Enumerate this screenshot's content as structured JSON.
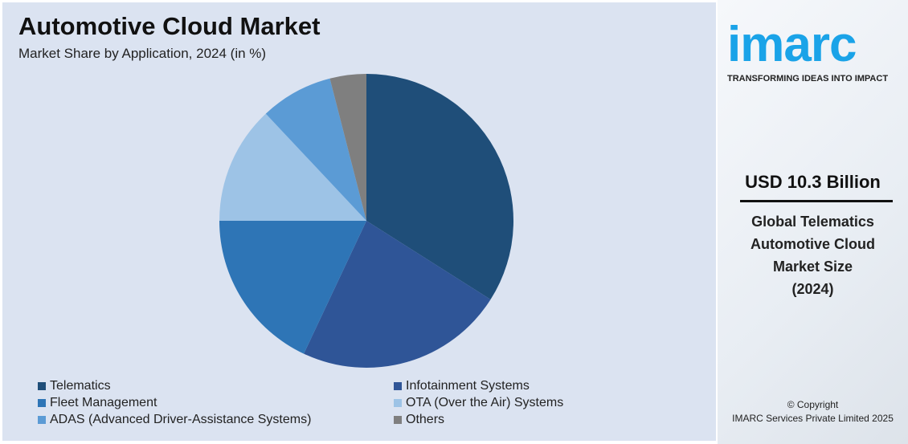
{
  "title": "Automotive Cloud Market",
  "subtitle": "Market Share by Application, 2024 (in %)",
  "chart_data": {
    "type": "pie",
    "categories": [
      "Telematics",
      "Infotainment Systems",
      "Fleet Management",
      "OTA (Over the Air) Systems",
      "ADAS (Advanced Driver-Assistance Systems)",
      "Others"
    ],
    "values": [
      34,
      23,
      18,
      13,
      8,
      4
    ],
    "colors": [
      "#1f4e79",
      "#2f5597",
      "#2e75b6",
      "#9dc3e6",
      "#5b9bd5",
      "#7f7f7f"
    ],
    "legend_position": "bottom"
  },
  "side": {
    "logo": "imarc",
    "tagline": "TRANSFORMING IDEAS INTO IMPACT",
    "value": "USD 10.3 Billion",
    "desc": [
      "Global Telematics",
      "Automotive Cloud",
      "Market Size",
      "(2024)"
    ],
    "copyright": "© Copyright",
    "company": "IMARC Services Private Limited 2025"
  }
}
